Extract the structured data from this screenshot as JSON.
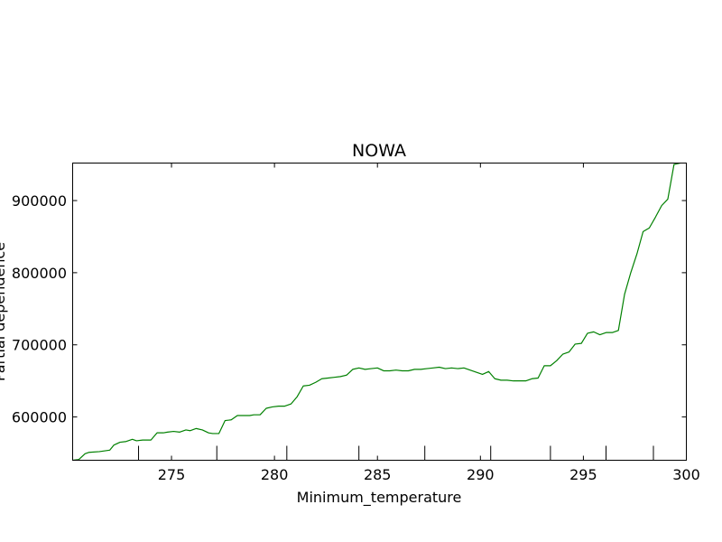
{
  "chart_data": {
    "type": "line",
    "title": "NOWA",
    "xlabel": "Minimum_temperature",
    "ylabel": "Partial dependence",
    "xlim": [
      270.2,
      300
    ],
    "ylim": [
      540000,
      952000
    ],
    "xticks": [
      275,
      280,
      285,
      290,
      295,
      300
    ],
    "xtick_labels": [
      "275",
      "280",
      "285",
      "290",
      "295",
      "300"
    ],
    "yticks": [
      600000,
      700000,
      800000,
      900000
    ],
    "ytick_labels": [
      "600000",
      "700000",
      "800000",
      "900000"
    ],
    "rug_x": [
      273.4,
      277.2,
      280.6,
      284.1,
      287.3,
      290.5,
      293.4,
      296.1,
      298.4
    ],
    "grid": false,
    "legend": "none",
    "series": [
      {
        "color": "#008000",
        "x": [
          270.2,
          270.5,
          270.8,
          271.0,
          271.5,
          272.0,
          272.2,
          272.5,
          272.8,
          273.1,
          273.3,
          273.6,
          274.0,
          274.3,
          274.6,
          274.8,
          275.1,
          275.4,
          275.7,
          275.9,
          276.2,
          276.5,
          276.8,
          277.0,
          277.3,
          277.6,
          277.9,
          278.2,
          278.5,
          278.8,
          279.0,
          279.3,
          279.6,
          279.9,
          280.2,
          280.5,
          280.8,
          281.1,
          281.4,
          281.7,
          282.0,
          282.3,
          282.6,
          282.9,
          283.2,
          283.5,
          283.8,
          284.1,
          284.4,
          284.7,
          285.0,
          285.3,
          285.6,
          285.9,
          286.2,
          286.5,
          286.8,
          287.1,
          287.4,
          287.7,
          288.0,
          288.3,
          288.6,
          288.9,
          289.2,
          289.5,
          289.8,
          290.1,
          290.4,
          290.7,
          291.0,
          291.3,
          291.6,
          291.9,
          292.2,
          292.5,
          292.8,
          293.1,
          293.4,
          293.7,
          294.0,
          294.3,
          294.6,
          294.9,
          295.2,
          295.5,
          295.8,
          296.1,
          296.4,
          296.7,
          297.0,
          297.3,
          297.6,
          297.9,
          298.2,
          298.5,
          298.8,
          299.1,
          299.4,
          299.7
        ],
        "y": [
          540000,
          541000,
          549000,
          551000,
          552000,
          554000,
          561000,
          565000,
          566000,
          569000,
          567000,
          568000,
          568000,
          578000,
          578000,
          579000,
          580000,
          579000,
          582000,
          581000,
          584000,
          582000,
          578000,
          577000,
          577000,
          595000,
          596000,
          602000,
          602000,
          602000,
          603000,
          603000,
          612000,
          614000,
          615000,
          615000,
          618000,
          628000,
          643000,
          644000,
          648000,
          653000,
          654000,
          655000,
          656000,
          658000,
          666000,
          668000,
          666000,
          667000,
          668000,
          664000,
          664000,
          665000,
          664000,
          664000,
          666000,
          666000,
          667000,
          668000,
          669000,
          667000,
          668000,
          667000,
          668000,
          665000,
          662000,
          659000,
          663000,
          653000,
          651000,
          651000,
          650000,
          650000,
          650000,
          653000,
          654000,
          671000,
          671000,
          678000,
          687000,
          690000,
          701000,
          702000,
          716000,
          718000,
          714000,
          717000,
          717000,
          720000,
          770000,
          800000,
          826000,
          857000,
          862000,
          877000,
          893000,
          902000,
          950000,
          952000
        ]
      }
    ]
  }
}
